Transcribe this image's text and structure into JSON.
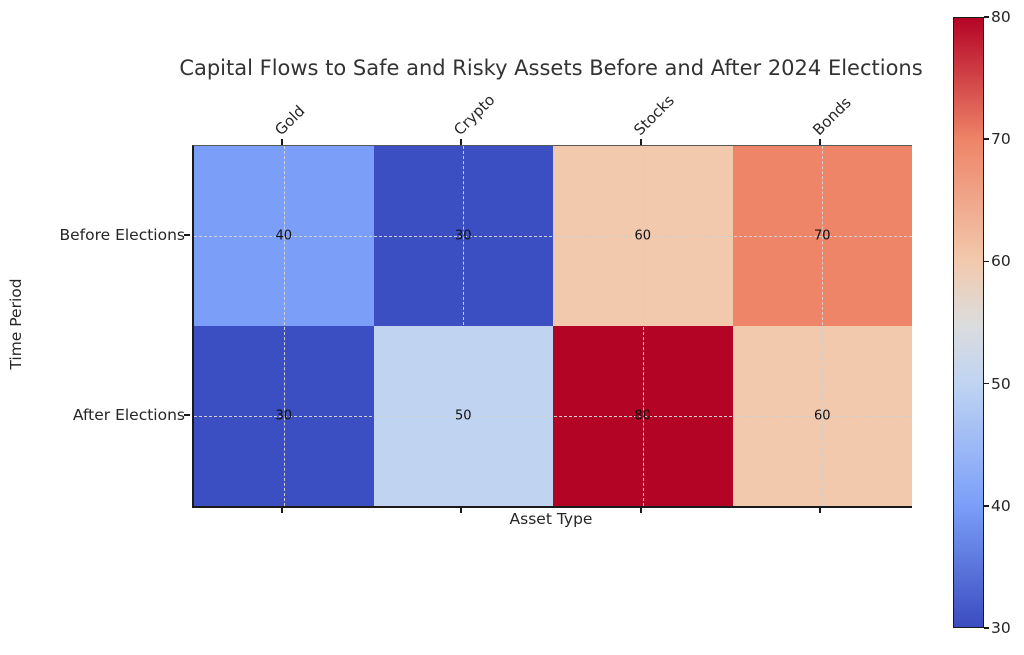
{
  "title": "Capital Flows to Safe and Risky Assets Before and After 2024 Elections",
  "chart_data": {
    "type": "heatmap",
    "title": "Capital Flows to Safe and Risky Assets Before and After 2024 Elections",
    "xlabel": "Asset Type",
    "ylabel": "Time Period",
    "columns": [
      "Gold",
      "Crypto",
      "Stocks",
      "Bonds"
    ],
    "rows": [
      "Before Elections",
      "After Elections"
    ],
    "values": [
      [
        40,
        30,
        60,
        70
      ],
      [
        30,
        50,
        80,
        60
      ]
    ],
    "cell_colors": [
      [
        "#7b9ff9",
        "#3b4ec2",
        "#f2c9ad",
        "#ee8468"
      ],
      [
        "#3b4ec2",
        "#c0d4f2",
        "#b40426",
        "#f2c9ad"
      ]
    ],
    "colormap": "coolwarm",
    "vmin": 30,
    "vmax": 80,
    "grid": "dashed, through cell centers",
    "annotations_color": "#111111",
    "colorbar": {
      "position": "right",
      "ticks": [
        80,
        70,
        60,
        50,
        40,
        30
      ],
      "gradient_stops": [
        {
          "pos": 0.0,
          "color": "#3b4cc0"
        },
        {
          "pos": 0.2,
          "color": "#7b9ff9"
        },
        {
          "pos": 0.4,
          "color": "#c0d4f2"
        },
        {
          "pos": 0.5,
          "color": "#dcdcdc"
        },
        {
          "pos": 0.6,
          "color": "#f2c9ad"
        },
        {
          "pos": 0.8,
          "color": "#ee8468"
        },
        {
          "pos": 1.0,
          "color": "#b40426"
        }
      ]
    }
  }
}
